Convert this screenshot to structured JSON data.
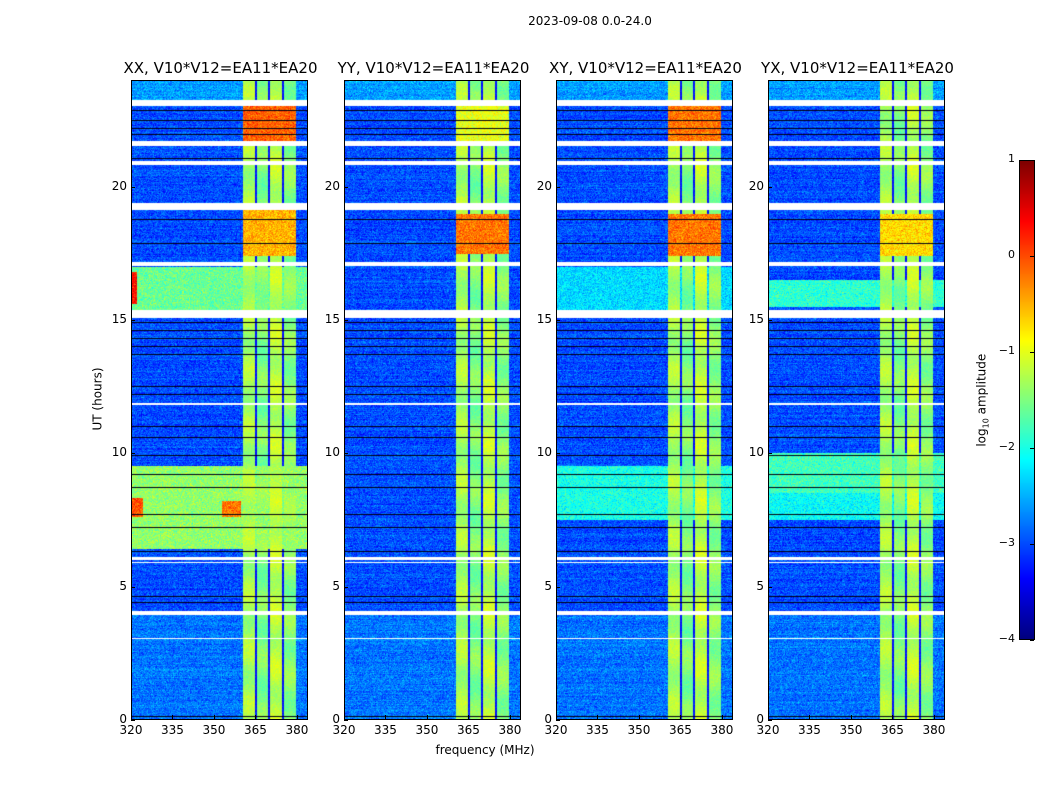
{
  "chart_data": {
    "type": "heatmap",
    "title": "2023-09-08 0.0-24.0",
    "xlabel": "frequency (MHz)",
    "ylabel": "UT (hours)",
    "xlim": [
      320,
      384
    ],
    "ylim": [
      0,
      24
    ],
    "xticks": [
      "320",
      "335",
      "350",
      "365",
      "380"
    ],
    "yticks": [
      "0",
      "5",
      "10",
      "15",
      "20"
    ],
    "colormap": "jet",
    "colorbar": {
      "label_main": "log",
      "label_sub": "10",
      "label_rest": " amplitude",
      "range": [
        -4,
        1
      ],
      "ticks": [
        "1",
        "0",
        "−1",
        "−2",
        "−3",
        "−4"
      ],
      "tick_values": [
        1,
        0,
        -1,
        -2,
        -3,
        -4
      ]
    },
    "background_level": -3.0,
    "band": {
      "range_mhz": [
        360.5,
        380
      ],
      "level": -1.4,
      "dividers_mhz": [
        365.5,
        370,
        375.3
      ]
    },
    "flagged_hours": [
      [
        23.05,
        23.3
      ],
      [
        21.55,
        21.75
      ],
      [
        20.85,
        21.0
      ],
      [
        19.15,
        19.4
      ],
      [
        17.05,
        17.2
      ],
      [
        15.1,
        15.4
      ],
      [
        11.8,
        11.9
      ],
      [
        6.0,
        6.1
      ],
      [
        5.85,
        5.92
      ],
      [
        3.9,
        4.05
      ],
      [
        3.0,
        3.05
      ]
    ],
    "dark_rows_hours": [
      22.9,
      22.5,
      22.2,
      22.0,
      21.1,
      18.8,
      17.9,
      14.9,
      14.6,
      14.3,
      14.0,
      13.7,
      12.5,
      12.2,
      11.0,
      10.6,
      9.9,
      9.2,
      8.7,
      7.7,
      7.2,
      6.3,
      4.6,
      4.4,
      0.1
    ],
    "panels": [
      {
        "title": "XX, V10*V12=EA11*EA20",
        "show_ylabel": true,
        "show_xlabel": false,
        "events": [
          [
            21.6,
            23.05,
            360.5,
            380,
            -0.1
          ],
          [
            17.4,
            19.15,
            360.5,
            380,
            -0.5
          ],
          [
            15.4,
            17.0,
            320,
            384,
            -1.6
          ],
          [
            15.6,
            16.8,
            320,
            322,
            0.3
          ],
          [
            6.4,
            9.5,
            320,
            384,
            -1.4
          ],
          [
            7.6,
            8.3,
            320,
            324,
            0.0
          ],
          [
            7.6,
            8.2,
            353,
            360,
            -0.2
          ]
        ]
      },
      {
        "title": "YY, V10*V12=EA11*EA20",
        "show_ylabel": false,
        "show_xlabel": true,
        "events": [
          [
            17.5,
            19.0,
            360.5,
            380,
            -0.2
          ],
          [
            21.6,
            23.05,
            360.5,
            380,
            -1.0
          ]
        ]
      },
      {
        "title": "XY, V10*V12=EA11*EA20",
        "show_ylabel": false,
        "show_xlabel": false,
        "events": [
          [
            21.6,
            23.05,
            360.5,
            380,
            -0.2
          ],
          [
            17.4,
            19.0,
            360.5,
            380,
            -0.2
          ],
          [
            7.5,
            9.5,
            320,
            384,
            -2.0
          ],
          [
            15.4,
            17.0,
            320,
            384,
            -2.3
          ]
        ]
      },
      {
        "title": "YX, V10*V12=EA11*EA20",
        "show_ylabel": false,
        "show_xlabel": false,
        "events": [
          [
            8.5,
            10.0,
            320,
            384,
            -1.8
          ],
          [
            15.5,
            16.5,
            320,
            384,
            -1.9
          ],
          [
            7.5,
            8.5,
            320,
            384,
            -2.1
          ],
          [
            17.4,
            19.0,
            360.5,
            380,
            -0.7
          ]
        ]
      }
    ]
  }
}
